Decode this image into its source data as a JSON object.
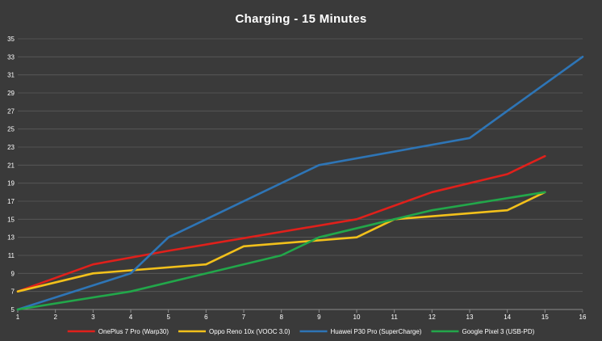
{
  "chart_data": {
    "type": "line",
    "title": "Charging - 15 Minutes",
    "xlabel": "",
    "ylabel": "",
    "x": [
      1,
      2,
      3,
      4,
      5,
      6,
      7,
      8,
      9,
      10,
      11,
      12,
      13,
      14,
      15,
      16
    ],
    "xlim": [
      1,
      16
    ],
    "ylim": [
      5,
      35
    ],
    "yticks": [
      5,
      7,
      9,
      11,
      13,
      15,
      17,
      19,
      21,
      23,
      25,
      27,
      29,
      31,
      33,
      35
    ],
    "grid": true,
    "legend_position": "bottom",
    "series": [
      {
        "name": "OnePlus 7 Pro (Warp30)",
        "color": "#e0201b",
        "x": [
          1,
          3,
          5,
          10,
          12,
          14,
          15
        ],
        "values": [
          7,
          10,
          11.5,
          15,
          18,
          20,
          22
        ]
      },
      {
        "name": "Oppo Reno 10x (VOOC 3.0)",
        "color": "#f2c01b",
        "x": [
          1,
          3,
          6,
          7,
          10,
          11,
          14,
          15
        ],
        "values": [
          7,
          9,
          10,
          12,
          13,
          15,
          16,
          18
        ]
      },
      {
        "name": "Huawei P30 Pro (SuperCharge)",
        "color": "#2e75b6",
        "x": [
          1,
          4,
          5,
          9,
          13,
          16
        ],
        "values": [
          5,
          9,
          13,
          21,
          24,
          33
        ]
      },
      {
        "name": "Google Pixel 3 (USB-PD)",
        "color": "#22a74a",
        "x": [
          1,
          4,
          8,
          9,
          11,
          12,
          15
        ],
        "values": [
          5,
          7,
          11,
          13,
          15,
          16,
          18
        ]
      }
    ]
  }
}
